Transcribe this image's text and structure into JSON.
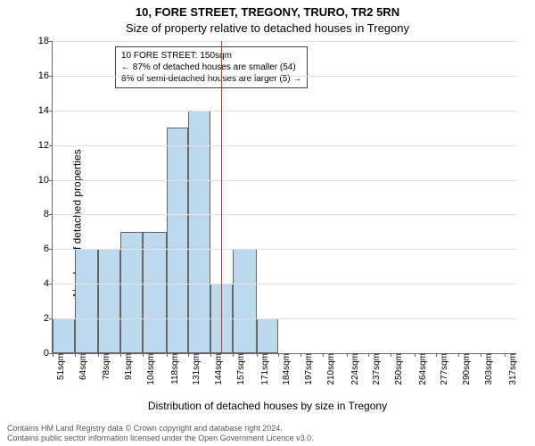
{
  "title_line1": "10, FORE STREET, TREGONY, TRURO, TR2 5RN",
  "title_line2": "Size of property relative to detached houses in Tregony",
  "ylabel": "Number of detached properties",
  "xlabel": "Distribution of detached houses by size in Tregony",
  "footer_line1": "Contains HM Land Registry data © Crown copyright and database right 2024.",
  "footer_line2": "Contains public sector information licensed under the Open Government Licence v3.0.",
  "annotation": {
    "line1": "10 FORE STREET: 150sqm",
    "line2": "← 87% of detached houses are smaller (54)",
    "line3": "8% of semi-detached houses are larger (5) →"
  },
  "chart": {
    "type": "histogram",
    "ylim": [
      0,
      18
    ],
    "ytick_step": 2,
    "bar_color": "#bcd9ed",
    "bar_border": "#666666",
    "grid_color": "#e0e0e0",
    "background_color": "#ffffff",
    "marker_color": "#cc3333",
    "marker_x_value": 150,
    "x_range": [
      51,
      324
    ],
    "x_tick_labels": [
      "51sqm",
      "64sqm",
      "78sqm",
      "91sqm",
      "104sqm",
      "118sqm",
      "131sqm",
      "144sqm",
      "157sqm",
      "171sqm",
      "184sqm",
      "197sqm",
      "210sqm",
      "224sqm",
      "237sqm",
      "250sqm",
      "264sqm",
      "277sqm",
      "290sqm",
      "303sqm",
      "317sqm"
    ],
    "bars": [
      {
        "x0": 51,
        "x1": 64,
        "y": 2
      },
      {
        "x0": 64,
        "x1": 78,
        "y": 6
      },
      {
        "x0": 78,
        "x1": 91,
        "y": 6
      },
      {
        "x0": 91,
        "x1": 104,
        "y": 7
      },
      {
        "x0": 104,
        "x1": 118,
        "y": 7
      },
      {
        "x0": 118,
        "x1": 131,
        "y": 13
      },
      {
        "x0": 131,
        "x1": 144,
        "y": 14
      },
      {
        "x0": 144,
        "x1": 157,
        "y": 4
      },
      {
        "x0": 157,
        "x1": 171,
        "y": 6
      },
      {
        "x0": 171,
        "x1": 184,
        "y": 2
      }
    ]
  },
  "fontsizes": {
    "title": 13,
    "axis_label": 12,
    "tick": 11,
    "footer": 9,
    "annotation": 10
  }
}
